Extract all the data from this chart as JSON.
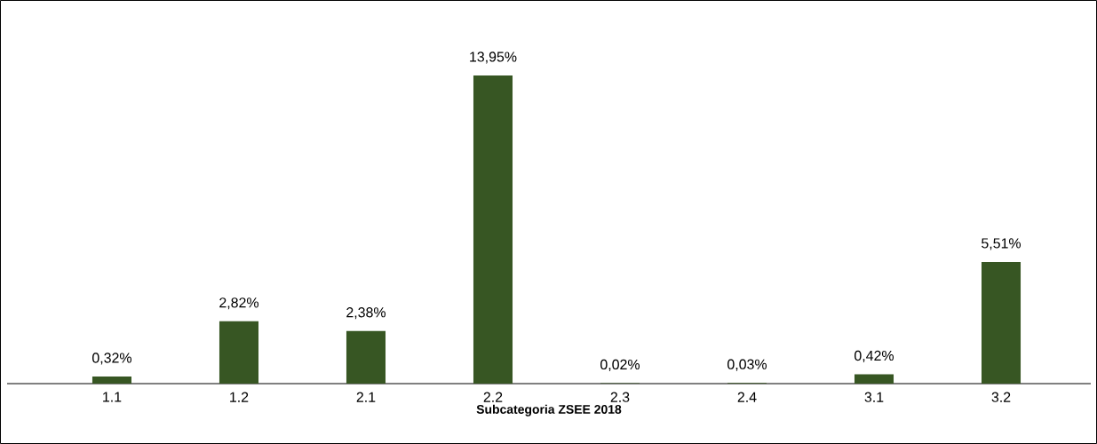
{
  "chart_data": {
    "type": "bar",
    "xlabel": "Subcategoria ZSEE 2018",
    "categories": [
      "1.1",
      "1.2",
      "2.1",
      "2.2",
      "2.3",
      "2.4",
      "3.1",
      "3.2"
    ],
    "values": [
      0.32,
      2.82,
      2.38,
      13.95,
      0.02,
      0.03,
      0.42,
      5.51
    ],
    "value_labels": [
      "0,32%",
      "2,82%",
      "2,38%",
      "13,95%",
      "0,02%",
      "0,03%",
      "0,42%",
      "5,51%"
    ],
    "color": "#375623",
    "tick_labels": "x",
    "grid": false
  }
}
